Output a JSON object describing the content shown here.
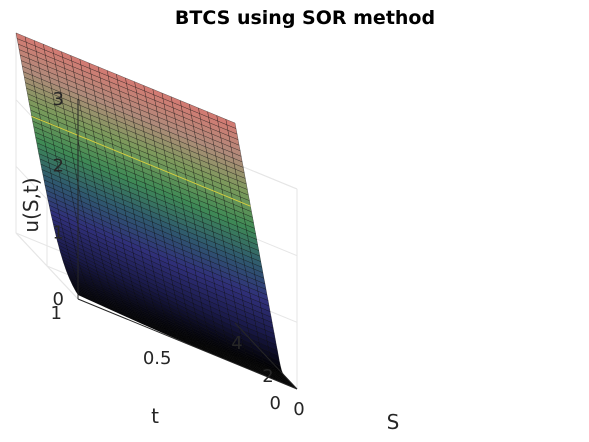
{
  "chart_data": {
    "type": "surface",
    "title": "BTCS using SOR method",
    "xlabel": "S",
    "ylabel": "t",
    "zlabel": "u(S,t)",
    "xlim": [
      0,
      4
    ],
    "ylim": [
      0,
      1
    ],
    "zlim": [
      0,
      3
    ],
    "xticks": [
      "0",
      "2",
      "4"
    ],
    "yticks": [
      "0",
      "0.5",
      "1"
    ],
    "zticks": [
      "0",
      "1",
      "2",
      "3"
    ],
    "grid": true,
    "strike": 1,
    "surface_samples": {
      "S": [
        0,
        0.5,
        1,
        1.5,
        2,
        2.5,
        3,
        3.5,
        4
      ],
      "t": [
        0,
        0.5,
        1
      ],
      "u": [
        [
          0,
          0,
          0,
          0.5,
          1,
          1.5,
          2,
          2.5,
          3
        ],
        [
          0.04,
          0.12,
          0.28,
          0.62,
          1.06,
          1.54,
          2.02,
          2.51,
          3
        ],
        [
          0.08,
          0.2,
          0.4,
          0.72,
          1.12,
          1.57,
          2.04,
          2.52,
          3
        ]
      ]
    },
    "colormap": [
      "#000000",
      "#1a1a4a",
      "#30307a",
      "#2f5a6e",
      "#3f8a55",
      "#7a9a5a",
      "#b08a7a",
      "#d47a72"
    ]
  }
}
